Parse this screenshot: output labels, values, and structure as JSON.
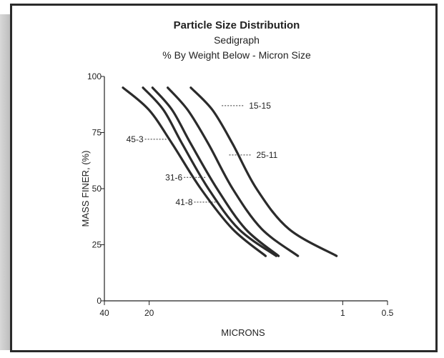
{
  "chart_data": {
    "type": "line",
    "title": "Particle Size Distribution",
    "subtitle_1": "Sedigraph",
    "subtitle_2": "% By Weight Below - Micron Size",
    "xlabel": "MICRONS",
    "ylabel": "MASS FINER, (%)",
    "x_scale": "log-reversed",
    "xlim": [
      40,
      0.5
    ],
    "ylim": [
      0,
      100
    ],
    "x_ticks": [
      {
        "value": 40,
        "label": "40"
      },
      {
        "value": 20,
        "label": "20"
      },
      {
        "value": 1,
        "label": "1"
      },
      {
        "value": 0.5,
        "label": "0.5"
      }
    ],
    "y_ticks": [
      {
        "value": 0,
        "label": "0"
      },
      {
        "value": 25,
        "label": "25"
      },
      {
        "value": 50,
        "label": "50"
      },
      {
        "value": 75,
        "label": "75"
      },
      {
        "value": 100,
        "label": "100"
      }
    ],
    "grid": false,
    "series": [
      {
        "name": "45-3",
        "x": [
          30,
          20,
          14,
          9,
          5.5,
          3.3
        ],
        "y": [
          95,
          85,
          70,
          50,
          32,
          20
        ]
      },
      {
        "name": "41-8",
        "x": [
          22,
          16,
          12,
          8,
          5,
          2.8
        ],
        "y": [
          95,
          85,
          70,
          50,
          32,
          20
        ]
      },
      {
        "name": "31-6",
        "x": [
          19,
          14,
          10.5,
          7,
          4.5,
          2.7
        ],
        "y": [
          95,
          85,
          70,
          50,
          32,
          20
        ]
      },
      {
        "name": "25-11",
        "x": [
          15,
          11,
          8,
          5.5,
          3.5,
          2.0
        ],
        "y": [
          95,
          85,
          70,
          50,
          32,
          20
        ]
      },
      {
        "name": "15-15",
        "x": [
          10.5,
          7.5,
          5.5,
          3.8,
          2.3,
          1.1
        ],
        "y": [
          95,
          85,
          70,
          50,
          32,
          20
        ]
      }
    ],
    "annotations": [
      {
        "series": "15-15",
        "text": "15-15",
        "x": 6.5,
        "y": 87,
        "side": "right"
      },
      {
        "series": "25-11",
        "text": "25-11",
        "x": 5.8,
        "y": 65,
        "side": "right"
      },
      {
        "series": "45-3",
        "text": "45-3",
        "x": 15,
        "y": 72,
        "side": "left"
      },
      {
        "series": "31-6",
        "text": "31-6",
        "x": 8.2,
        "y": 55,
        "side": "left"
      },
      {
        "series": "41-8",
        "text": "41-8",
        "x": 7.0,
        "y": 44,
        "side": "left"
      }
    ]
  }
}
